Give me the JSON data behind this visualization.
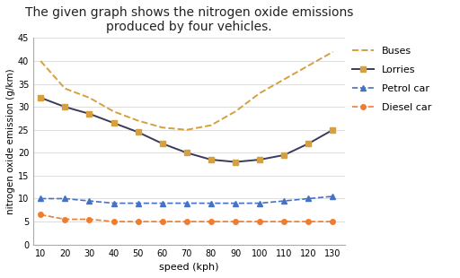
{
  "title": "The given graph shows the nitrogen oxide emissions\nproduced by four vehicles.",
  "xlabel": "speed (kph)",
  "ylabel": "nitrogen oxide emission (g/km)",
  "speed": [
    10,
    20,
    30,
    40,
    50,
    60,
    70,
    80,
    90,
    100,
    110,
    120,
    130
  ],
  "buses": [
    40,
    34,
    32,
    29,
    27,
    25.5,
    25,
    26,
    29,
    33,
    36,
    39,
    42
  ],
  "lorries": [
    32,
    30,
    28.5,
    26.5,
    24.5,
    22,
    20,
    18.5,
    18,
    18.5,
    19.5,
    22,
    25
  ],
  "petrol_car": [
    10,
    10,
    9.5,
    9,
    9,
    9,
    9,
    9,
    9,
    9,
    9.5,
    10,
    10.5
  ],
  "diesel_car": [
    6.5,
    5.5,
    5.5,
    5,
    5,
    5,
    5,
    5,
    5,
    5,
    5,
    5,
    5
  ],
  "buses_color": "#D4A040",
  "lorries_color": "#3a3a5a",
  "petrol_color": "#4472C4",
  "diesel_color": "#ED7D31",
  "ylim": [
    0,
    45
  ],
  "yticks": [
    0,
    5,
    10,
    15,
    20,
    25,
    30,
    35,
    40,
    45
  ],
  "bg_color": "#ffffff",
  "title_fontsize": 10,
  "tick_fontsize": 7,
  "label_fontsize": 8,
  "legend_fontsize": 8
}
